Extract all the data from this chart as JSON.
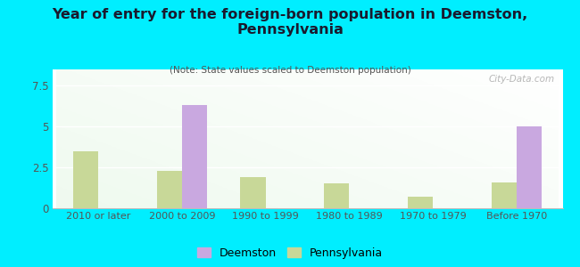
{
  "title": "Year of entry for the foreign-born population in Deemston,\nPennsylvania",
  "subtitle": "(Note: State values scaled to Deemston population)",
  "categories": [
    "2010 or later",
    "2000 to 2009",
    "1990 to 1999",
    "1980 to 1989",
    "1970 to 1979",
    "Before 1970"
  ],
  "deemston_values": [
    0,
    6.3,
    0,
    0,
    0,
    5.0
  ],
  "pennsylvania_values": [
    3.5,
    2.3,
    1.9,
    1.5,
    0.7,
    1.6
  ],
  "deemston_color": "#c9a8e0",
  "pennsylvania_color": "#c8d898",
  "background_color": "#00eeff",
  "ylim": [
    0,
    8.5
  ],
  "yticks": [
    0,
    2.5,
    5,
    7.5
  ],
  "bar_width": 0.3,
  "watermark": "City-Data.com"
}
